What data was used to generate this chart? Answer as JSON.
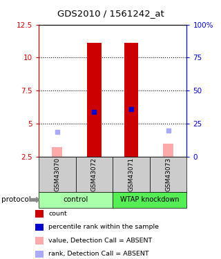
{
  "title": "GDS2010 / 1561242_at",
  "samples": [
    "GSM43070",
    "GSM43072",
    "GSM43071",
    "GSM43073"
  ],
  "group_labels": [
    "control",
    "WTAP knockdown"
  ],
  "ylim": [
    2.5,
    12.5
  ],
  "y_ticks_left": [
    2.5,
    5.0,
    7.5,
    10.0,
    12.5
  ],
  "y_ticks_left_labels": [
    "2.5",
    "5",
    "7.5",
    "10",
    "12.5"
  ],
  "y_ticks_right": [
    0,
    25,
    50,
    75,
    100
  ],
  "y_ticks_right_labels": [
    "0",
    "25",
    "50",
    "75",
    "100%"
  ],
  "left_tick_color": "#cc0000",
  "right_tick_color": "#0000cc",
  "dotted_lines": [
    5.0,
    7.5,
    10.0
  ],
  "bar_values": [
    null,
    11.1,
    11.1,
    null
  ],
  "bar_color": "#cc0000",
  "bar_width": 0.38,
  "pink_bar_values": [
    3.2,
    null,
    null,
    3.5
  ],
  "pink_bar_color": "#ffaaaa",
  "pink_bar_width": 0.28,
  "blue_square_values": [
    null,
    5.9,
    6.1,
    null
  ],
  "blue_square_color": "#0000cc",
  "lavender_square_values": [
    4.4,
    null,
    null,
    4.5
  ],
  "lavender_square_color": "#aaaaff",
  "sample_label_bg": "#cccccc",
  "ctrl_color": "#aaffaa",
  "wtap_color": "#55ee55",
  "legend_items": [
    {
      "color": "#cc0000",
      "label": "count"
    },
    {
      "color": "#0000cc",
      "label": "percentile rank within the sample"
    },
    {
      "color": "#ffaaaa",
      "label": "value, Detection Call = ABSENT"
    },
    {
      "color": "#aaaaff",
      "label": "rank, Detection Call = ABSENT"
    }
  ]
}
